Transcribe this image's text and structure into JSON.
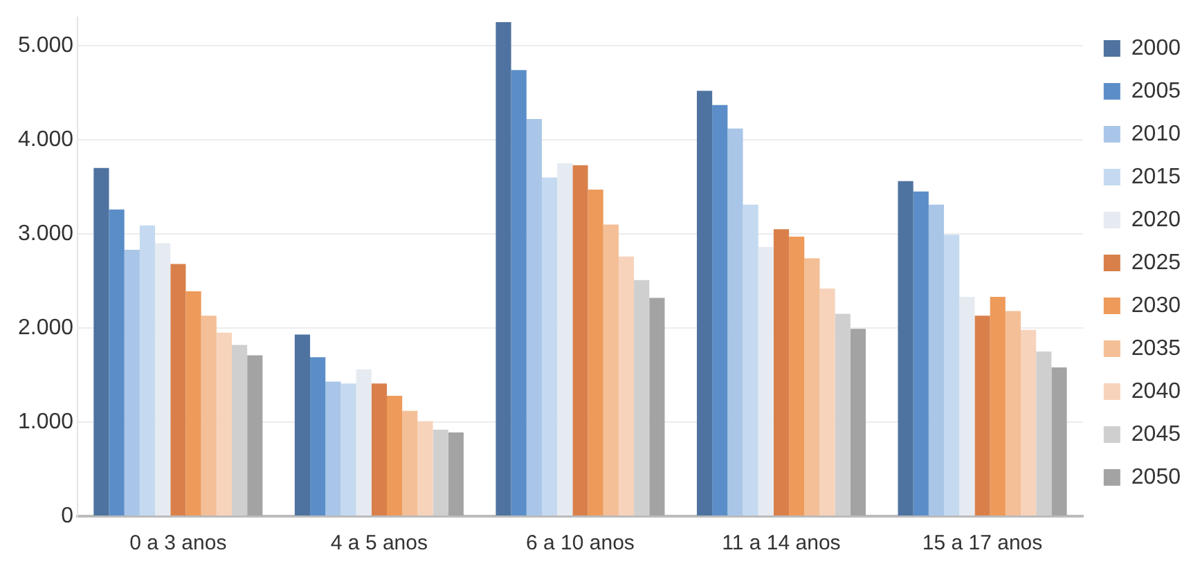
{
  "chart_data": {
    "type": "bar",
    "categories": [
      "0 a 3 anos",
      "4 a 5 anos",
      "6 a 10 anos",
      "11 a 14 anos",
      "15 a 17 anos"
    ],
    "series": [
      {
        "name": "2000",
        "color": "#4f73a0",
        "values": [
          3700,
          1930,
          5250,
          4520,
          3560
        ]
      },
      {
        "name": "2005",
        "color": "#5b8ec8",
        "values": [
          3260,
          1690,
          4740,
          4370,
          3450
        ]
      },
      {
        "name": "2010",
        "color": "#a9c6e8",
        "values": [
          2830,
          1430,
          4220,
          4120,
          3310
        ]
      },
      {
        "name": "2015",
        "color": "#c5daf0",
        "values": [
          3090,
          1410,
          3600,
          3310,
          2990
        ]
      },
      {
        "name": "2020",
        "color": "#e6ebf2",
        "values": [
          2900,
          1560,
          3750,
          2860,
          2330
        ]
      },
      {
        "name": "2025",
        "color": "#d9804a",
        "values": [
          2680,
          1410,
          3730,
          3050,
          2130
        ]
      },
      {
        "name": "2030",
        "color": "#ee9a5a",
        "values": [
          2390,
          1280,
          3470,
          2970,
          2330
        ]
      },
      {
        "name": "2035",
        "color": "#f4bf96",
        "values": [
          2130,
          1120,
          3100,
          2740,
          2180
        ]
      },
      {
        "name": "2040",
        "color": "#f7d3bc",
        "values": [
          1950,
          1010,
          2760,
          2420,
          1980
        ]
      },
      {
        "name": "2045",
        "color": "#cfcfcf",
        "values": [
          1820,
          920,
          2510,
          2150,
          1750
        ]
      },
      {
        "name": "2050",
        "color": "#a3a3a3",
        "values": [
          1710,
          890,
          2320,
          1990,
          1580
        ]
      }
    ],
    "ylim": [
      0,
      5300
    ],
    "yticks": [
      {
        "value": 0,
        "label": "0"
      },
      {
        "value": 1000,
        "label": "1.000"
      },
      {
        "value": 2000,
        "label": "2.000"
      },
      {
        "value": 3000,
        "label": "3.000"
      },
      {
        "value": 4000,
        "label": "4.000"
      },
      {
        "value": 5000,
        "label": "5.000"
      }
    ],
    "grid": "y",
    "legend": "right"
  }
}
